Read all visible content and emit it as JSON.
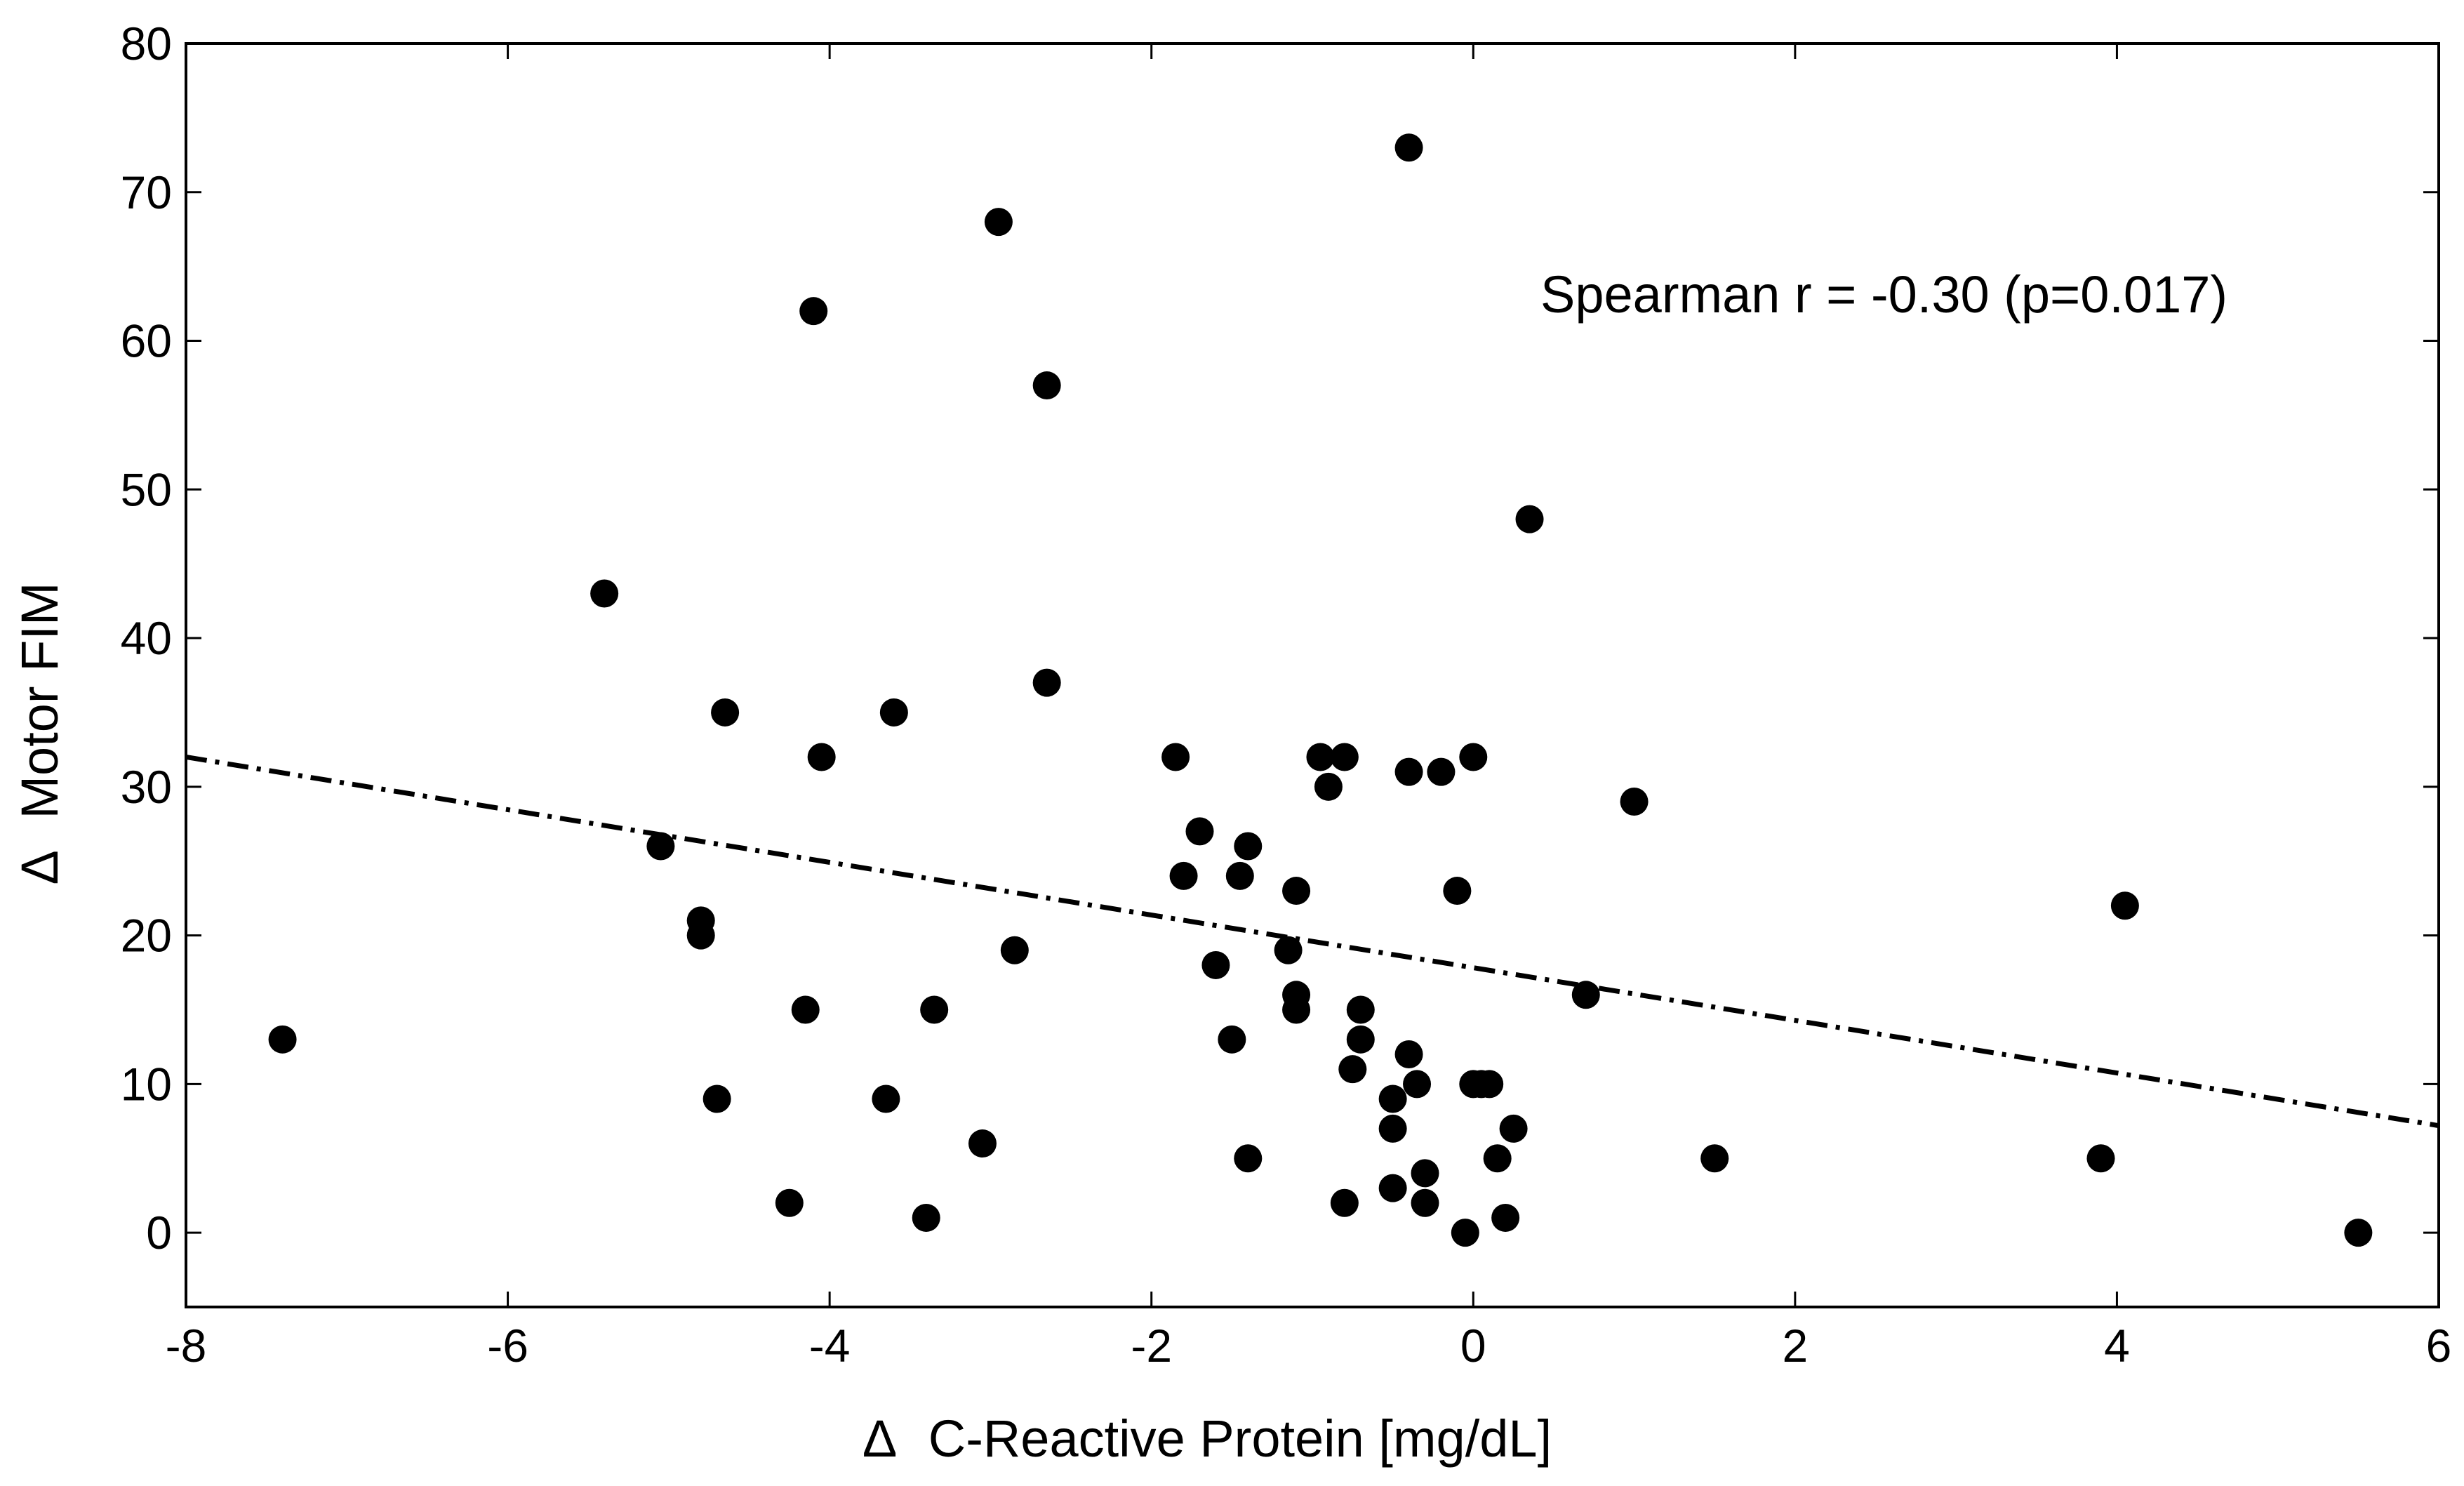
{
  "chart_data": {
    "type": "scatter",
    "title": "",
    "xlabel": "C-Reactive Protein [mg/dL]",
    "ylabel": "Motor FIM",
    "label_prefix": "Δ",
    "xlim": [
      -8,
      6
    ],
    "ylim": [
      -5,
      80
    ],
    "xticks": [
      "-8",
      "-6",
      "-4",
      "-2",
      "0",
      "2",
      "4",
      "6"
    ],
    "yticks": [
      "0",
      "10",
      "20",
      "30",
      "40",
      "50",
      "60",
      "70",
      "80"
    ],
    "grid": false,
    "annotation": "Spearman r = -0.30 (p=0.017)",
    "trendline": {
      "x": [
        -8,
        6
      ],
      "y": [
        32.0,
        7.2
      ],
      "style": "dash-dot"
    },
    "colors": {
      "marker": "#000000",
      "axes": "#000000",
      "trendline": "#000000"
    },
    "points": [
      {
        "x": -7.4,
        "y": 13
      },
      {
        "x": -5.4,
        "y": 43
      },
      {
        "x": -5.05,
        "y": 26
      },
      {
        "x": -4.8,
        "y": 21
      },
      {
        "x": -4.8,
        "y": 20
      },
      {
        "x": -4.7,
        "y": 9
      },
      {
        "x": -4.65,
        "y": 35
      },
      {
        "x": -4.25,
        "y": 2
      },
      {
        "x": -4.15,
        "y": 15
      },
      {
        "x": -4.1,
        "y": 62
      },
      {
        "x": -4.05,
        "y": 32
      },
      {
        "x": -3.65,
        "y": 9
      },
      {
        "x": -3.6,
        "y": 35
      },
      {
        "x": -3.4,
        "y": 1
      },
      {
        "x": -3.35,
        "y": 15
      },
      {
        "x": -3.05,
        "y": 6
      },
      {
        "x": -2.95,
        "y": 68
      },
      {
        "x": -2.85,
        "y": 19
      },
      {
        "x": -2.65,
        "y": 57
      },
      {
        "x": -2.65,
        "y": 37
      },
      {
        "x": -1.85,
        "y": 32
      },
      {
        "x": -1.8,
        "y": 24
      },
      {
        "x": -1.7,
        "y": 27
      },
      {
        "x": -1.6,
        "y": 18
      },
      {
        "x": -1.5,
        "y": 13
      },
      {
        "x": -1.45,
        "y": 24
      },
      {
        "x": -1.4,
        "y": 26
      },
      {
        "x": -1.4,
        "y": 5
      },
      {
        "x": -1.15,
        "y": 19
      },
      {
        "x": -1.1,
        "y": 23
      },
      {
        "x": -1.1,
        "y": 16
      },
      {
        "x": -1.1,
        "y": 15
      },
      {
        "x": -0.95,
        "y": 32
      },
      {
        "x": -0.9,
        "y": 30
      },
      {
        "x": -0.8,
        "y": 32
      },
      {
        "x": -0.8,
        "y": 2
      },
      {
        "x": -0.75,
        "y": 11
      },
      {
        "x": -0.7,
        "y": 15
      },
      {
        "x": -0.7,
        "y": 13
      },
      {
        "x": -0.5,
        "y": 9
      },
      {
        "x": -0.5,
        "y": 7
      },
      {
        "x": -0.5,
        "y": 3
      },
      {
        "x": -0.4,
        "y": 73
      },
      {
        "x": -0.4,
        "y": 31
      },
      {
        "x": -0.4,
        "y": 12
      },
      {
        "x": -0.35,
        "y": 10
      },
      {
        "x": -0.3,
        "y": 4
      },
      {
        "x": -0.3,
        "y": 2
      },
      {
        "x": -0.2,
        "y": 31
      },
      {
        "x": -0.1,
        "y": 23
      },
      {
        "x": -0.05,
        "y": 0
      },
      {
        "x": 0.0,
        "y": 32
      },
      {
        "x": 0.0,
        "y": 10
      },
      {
        "x": 0.05,
        "y": 10
      },
      {
        "x": 0.1,
        "y": 10
      },
      {
        "x": 0.15,
        "y": 5
      },
      {
        "x": 0.2,
        "y": 1
      },
      {
        "x": 0.25,
        "y": 7
      },
      {
        "x": 0.35,
        "y": 48
      },
      {
        "x": 0.7,
        "y": 16
      },
      {
        "x": 1.0,
        "y": 29
      },
      {
        "x": 1.5,
        "y": 5
      },
      {
        "x": 3.9,
        "y": 5
      },
      {
        "x": 4.05,
        "y": 22
      },
      {
        "x": 5.5,
        "y": 0
      }
    ]
  }
}
